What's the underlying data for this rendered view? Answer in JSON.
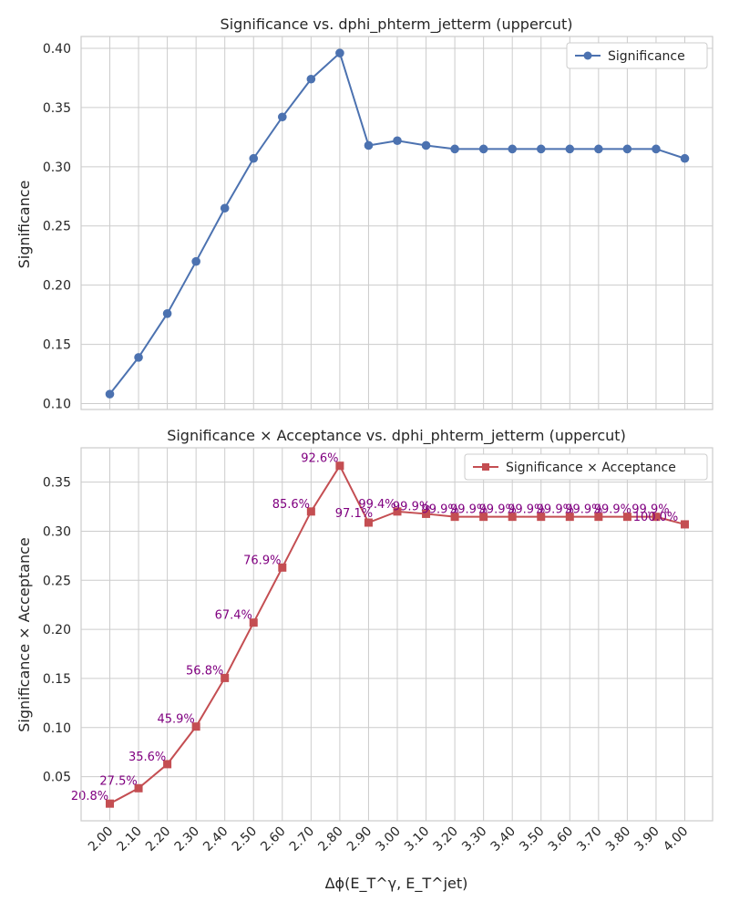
{
  "chart_data": [
    {
      "type": "line",
      "title": "Significance vs. dphi_phterm_jetterm (uppercut)",
      "xlabel": "",
      "ylabel": "Significance",
      "x": [
        2.0,
        2.1,
        2.2,
        2.3,
        2.4,
        2.5,
        2.6,
        2.7,
        2.8,
        2.9,
        3.0,
        3.1,
        3.2,
        3.3,
        3.4,
        3.5,
        3.6,
        3.7,
        3.8,
        3.9,
        4.0
      ],
      "ylim": [
        0.095,
        0.41
      ],
      "yticks": [
        0.1,
        0.15,
        0.2,
        0.25,
        0.3,
        0.35,
        0.4
      ],
      "ytick_labels": [
        "0.10",
        "0.15",
        "0.20",
        "0.25",
        "0.30",
        "0.35",
        "0.40"
      ],
      "grid": true,
      "legend_position": "top-right",
      "series": [
        {
          "name": "Significance",
          "marker": "circle",
          "color": "#4c72b0",
          "values": [
            0.108,
            0.139,
            0.176,
            0.22,
            0.265,
            0.307,
            0.342,
            0.374,
            0.396,
            0.318,
            0.322,
            0.318,
            0.315,
            0.315,
            0.315,
            0.315,
            0.315,
            0.315,
            0.315,
            0.315,
            0.307
          ]
        }
      ]
    },
    {
      "type": "line",
      "title": "Significance × Acceptance vs. dphi_phterm_jetterm (uppercut)",
      "xlabel": "Δϕ(E_T^γ, E_T^jet)",
      "ylabel": "Significance × Acceptance",
      "x": [
        2.0,
        2.1,
        2.2,
        2.3,
        2.4,
        2.5,
        2.6,
        2.7,
        2.8,
        2.9,
        3.0,
        3.1,
        3.2,
        3.3,
        3.4,
        3.5,
        3.6,
        3.7,
        3.8,
        3.9,
        4.0
      ],
      "xtick_labels": [
        "2.00",
        "2.10",
        "2.20",
        "2.30",
        "2.40",
        "2.50",
        "2.60",
        "2.70",
        "2.80",
        "2.90",
        "3.00",
        "3.10",
        "3.20",
        "3.30",
        "3.40",
        "3.50",
        "3.60",
        "3.70",
        "3.80",
        "3.90",
        "4.00"
      ],
      "ylim": [
        0.005,
        0.385
      ],
      "yticks": [
        0.05,
        0.1,
        0.15,
        0.2,
        0.25,
        0.3,
        0.35
      ],
      "ytick_labels": [
        "0.05",
        "0.10",
        "0.15",
        "0.20",
        "0.25",
        "0.30",
        "0.35"
      ],
      "grid": true,
      "legend_position": "top-right",
      "series": [
        {
          "name": "Significance × Acceptance",
          "marker": "square",
          "color": "#c44e52",
          "values": [
            0.0225,
            0.0382,
            0.0627,
            0.101,
            0.1505,
            0.2069,
            0.263,
            0.3201,
            0.3667,
            0.3088,
            0.3201,
            0.3177,
            0.3147,
            0.3147,
            0.3147,
            0.3147,
            0.3147,
            0.3147,
            0.3147,
            0.3147,
            0.307
          ],
          "annotations": [
            "20.8%",
            "27.5%",
            "35.6%",
            "45.9%",
            "56.8%",
            "67.4%",
            "76.9%",
            "85.6%",
            "92.6%",
            "97.1%",
            "99.4%",
            "99.9%",
            "99.9%",
            "99.9%",
            "99.9%",
            "99.9%",
            "99.9%",
            "99.9%",
            "99.9%",
            "99.9%",
            "100.0%"
          ]
        }
      ]
    }
  ]
}
